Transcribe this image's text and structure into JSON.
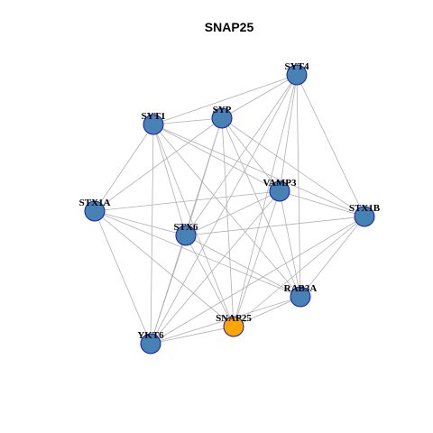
{
  "title": "SNAP25",
  "colors": {
    "node_default": "#4682b4",
    "node_focus": "#ffa500",
    "node_border": "#1a1aa8",
    "edge": "#b0b0b0"
  },
  "nodes": [
    {
      "id": "SYT4",
      "label": "SYT4",
      "focus": false
    },
    {
      "id": "SYT1",
      "label": "SYT1",
      "focus": false
    },
    {
      "id": "SYP",
      "label": "SYP",
      "focus": false
    },
    {
      "id": "VAMP3",
      "label": "VAMP3",
      "focus": false
    },
    {
      "id": "STX1A",
      "label": "STX1A",
      "focus": false
    },
    {
      "id": "STX1B",
      "label": "STX1B",
      "focus": false
    },
    {
      "id": "STX6",
      "label": "STX6",
      "focus": false
    },
    {
      "id": "RAB3A",
      "label": "RAB3A",
      "focus": false
    },
    {
      "id": "SNAP25",
      "label": "SNAP25",
      "focus": true
    },
    {
      "id": "YKT6",
      "label": "YKT6",
      "focus": false
    }
  ],
  "edges": [
    [
      "SYT4",
      "SYT1"
    ],
    [
      "SYT4",
      "SYP"
    ],
    [
      "SYT4",
      "VAMP3"
    ],
    [
      "SYT4",
      "STX1B"
    ],
    [
      "SYT4",
      "STX6"
    ],
    [
      "SYT4",
      "RAB3A"
    ],
    [
      "SYT4",
      "SNAP25"
    ],
    [
      "SYT4",
      "YKT6"
    ],
    [
      "SYT1",
      "SYP"
    ],
    [
      "SYT1",
      "VAMP3"
    ],
    [
      "SYT1",
      "STX1A"
    ],
    [
      "SYT1",
      "STX1B"
    ],
    [
      "SYT1",
      "STX6"
    ],
    [
      "SYT1",
      "RAB3A"
    ],
    [
      "SYT1",
      "SNAP25"
    ],
    [
      "SYT1",
      "YKT6"
    ],
    [
      "SYP",
      "VAMP3"
    ],
    [
      "SYP",
      "STX1A"
    ],
    [
      "SYP",
      "STX1B"
    ],
    [
      "SYP",
      "STX6"
    ],
    [
      "SYP",
      "RAB3A"
    ],
    [
      "SYP",
      "SNAP25"
    ],
    [
      "SYP",
      "YKT6"
    ],
    [
      "VAMP3",
      "STX1A"
    ],
    [
      "VAMP3",
      "STX1B"
    ],
    [
      "VAMP3",
      "STX6"
    ],
    [
      "VAMP3",
      "RAB3A"
    ],
    [
      "VAMP3",
      "SNAP25"
    ],
    [
      "VAMP3",
      "YKT6"
    ],
    [
      "STX1A",
      "STX6"
    ],
    [
      "STX1A",
      "RAB3A"
    ],
    [
      "STX1A",
      "SNAP25"
    ],
    [
      "STX1A",
      "YKT6"
    ],
    [
      "STX1B",
      "STX6"
    ],
    [
      "STX1B",
      "RAB3A"
    ],
    [
      "STX1B",
      "SNAP25"
    ],
    [
      "STX1B",
      "YKT6"
    ],
    [
      "STX6",
      "RAB3A"
    ],
    [
      "STX6",
      "SNAP25"
    ],
    [
      "STX6",
      "YKT6"
    ],
    [
      "RAB3A",
      "SNAP25"
    ],
    [
      "RAB3A",
      "YKT6"
    ],
    [
      "SNAP25",
      "YKT6"
    ]
  ]
}
